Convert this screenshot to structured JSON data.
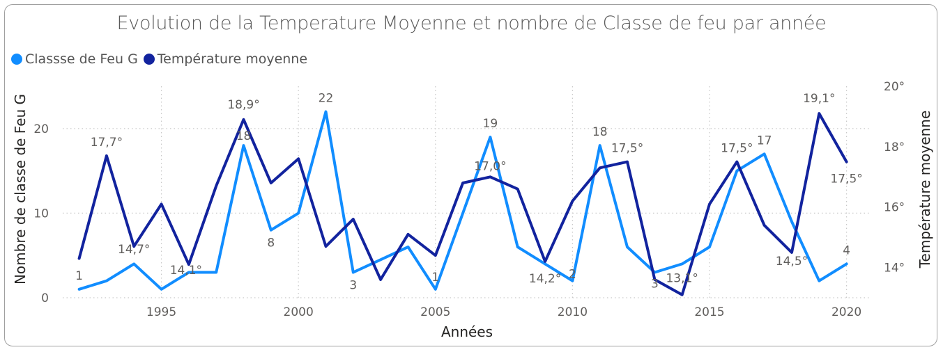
{
  "chart_data": {
    "type": "line",
    "title": "Evolution de la Temperature Moyenne et nombre de Classe de feu par année",
    "xlabel": "Années",
    "ylabel": "Nombre de classe de Feu G",
    "y2label": "Température moyenne",
    "x": [
      1992,
      1993,
      1994,
      1995,
      1996,
      1997,
      1998,
      1999,
      2000,
      2001,
      2002,
      2003,
      2004,
      2005,
      2006,
      2007,
      2008,
      2009,
      2010,
      2011,
      2012,
      2013,
      2014,
      2015,
      2016,
      2017,
      2018,
      2019,
      2020
    ],
    "xlim": [
      1991.4,
      2020.9
    ],
    "xticks": [
      "1995",
      "2000",
      "2005",
      "2010",
      "2015",
      "2020"
    ],
    "ylim": [
      0,
      25
    ],
    "yticks": [
      "0",
      "10",
      "20"
    ],
    "y2lim": [
      13.0,
      20.0
    ],
    "y2ticks": [
      "14°",
      "16°",
      "18°",
      "20°"
    ],
    "grid": true,
    "legend_position": "top-left",
    "series": [
      {
        "name": "Classse de Feu G",
        "axis": "left",
        "color": "#118DFF",
        "values": [
          1,
          2,
          4,
          1,
          3,
          3,
          18,
          8,
          10,
          22,
          3,
          4.5,
          6,
          1,
          10,
          19,
          6,
          4,
          2,
          18,
          6,
          3,
          4,
          6,
          15,
          17,
          9,
          2,
          4
        ],
        "labels": [
          {
            "x": 1992,
            "text": "1"
          },
          {
            "x": 1998,
            "text": "18"
          },
          {
            "x": 1999,
            "text": "8"
          },
          {
            "x": 2001,
            "text": "22"
          },
          {
            "x": 2002,
            "text": "3"
          },
          {
            "x": 2005,
            "text": "1"
          },
          {
            "x": 2007,
            "text": "19"
          },
          {
            "x": 2010,
            "text": "2"
          },
          {
            "x": 2011,
            "text": "18"
          },
          {
            "x": 2013,
            "text": "3"
          },
          {
            "x": 2017,
            "text": "17"
          },
          {
            "x": 2020,
            "text": "4"
          }
        ]
      },
      {
        "name": "Température moyenne",
        "axis": "right",
        "color": "#12239E",
        "values": [
          14.3,
          17.7,
          14.7,
          16.1,
          14.1,
          16.7,
          18.9,
          16.8,
          17.6,
          14.7,
          15.6,
          13.6,
          15.1,
          14.4,
          16.8,
          17.0,
          16.6,
          14.2,
          16.2,
          17.3,
          17.5,
          13.6,
          13.1,
          16.1,
          17.5,
          15.4,
          14.5,
          19.1,
          17.5
        ],
        "labels": [
          {
            "x": 1993,
            "text": "17,7°"
          },
          {
            "x": 1994,
            "text": "14,7°"
          },
          {
            "x": 1996,
            "text": "14,1°"
          },
          {
            "x": 1998,
            "text": "18,9°"
          },
          {
            "x": 2007,
            "text": "17,0°"
          },
          {
            "x": 2009,
            "text": "14,2°"
          },
          {
            "x": 2012,
            "text": "17,5°"
          },
          {
            "x": 2014,
            "text": "13,1°"
          },
          {
            "x": 2016,
            "text": "17,5°"
          },
          {
            "x": 2018,
            "text": "14,5°"
          },
          {
            "x": 2019,
            "text": "19,1°"
          },
          {
            "x": 2020,
            "text": "17,5°"
          }
        ]
      }
    ]
  }
}
